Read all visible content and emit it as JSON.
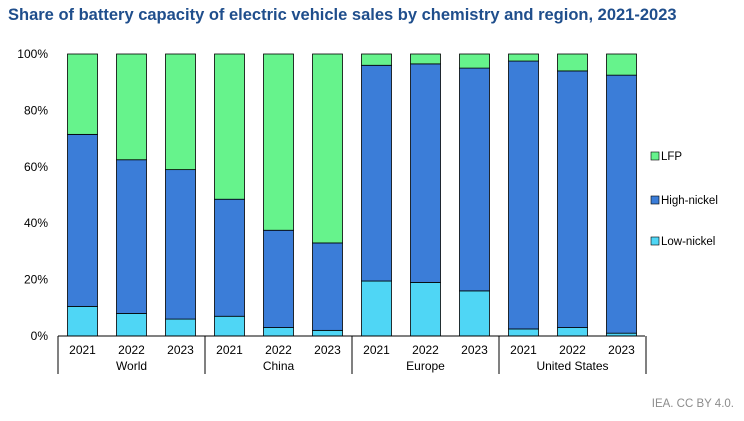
{
  "title": "Share of battery capacity of electric vehicle sales by chemistry and region, 2021-2023",
  "credit": "IEA. CC BY 4.0.",
  "chart_data": {
    "type": "bar",
    "stacked": true,
    "title": "Share of battery capacity of electric vehicle sales by chemistry and region, 2021-2023",
    "xlabel": "",
    "ylabel": "",
    "ylim": [
      0,
      100
    ],
    "yticks": [
      "0%",
      "20%",
      "40%",
      "60%",
      "80%",
      "100%"
    ],
    "grid": false,
    "legend_position": "right",
    "groups": [
      {
        "name": "World",
        "categories": [
          "2021",
          "2022",
          "2023"
        ]
      },
      {
        "name": "China",
        "categories": [
          "2021",
          "2022",
          "2023"
        ]
      },
      {
        "name": "Europe",
        "categories": [
          "2021",
          "2022",
          "2023"
        ]
      },
      {
        "name": "United States",
        "categories": [
          "2021",
          "2022",
          "2023"
        ]
      }
    ],
    "series": [
      {
        "name": "Low-nickel",
        "color": "#4fd6f5",
        "values": [
          10.5,
          8,
          6,
          7,
          3,
          2,
          19.5,
          19,
          16,
          2.5,
          3,
          1
        ]
      },
      {
        "name": "High-nickel",
        "color": "#3b7dd8",
        "values": [
          61,
          54.5,
          53,
          41.5,
          34.5,
          31,
          76.5,
          77.5,
          79,
          95,
          91,
          91.5
        ]
      },
      {
        "name": "LFP",
        "color": "#66f38c",
        "values": [
          28.5,
          37.5,
          41,
          51.5,
          62.5,
          67,
          4,
          3.5,
          5,
          2.5,
          6,
          7.5
        ]
      }
    ],
    "legend": [
      "LFP",
      "High-nickel",
      "Low-nickel"
    ]
  }
}
